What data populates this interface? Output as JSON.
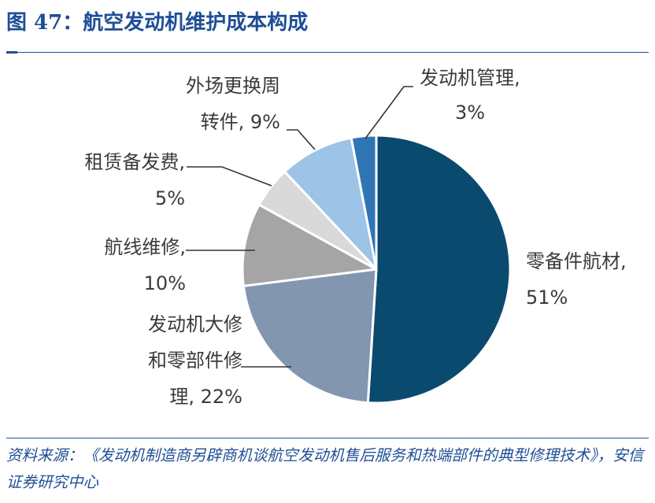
{
  "title": "图 47：航空发动机维护成本构成",
  "source": "资料来源：《发动机制造商另辟商机谈航空发动机售后服务和热端部件的典型修理技术》，安信证券研究中心",
  "chart_data": {
    "type": "pie",
    "title": "",
    "legend": "none",
    "slices": [
      {
        "label": "零备件航材",
        "value": 51,
        "color": "#0b4a6f",
        "label_lines": [
          "零备件航材,",
          "51%"
        ]
      },
      {
        "label": "发动机大修和零部件修理",
        "value": 22,
        "color": "#8396b0",
        "label_lines": [
          "发动机大修",
          "和零部件修",
          "理, 22%"
        ]
      },
      {
        "label": "航线维修",
        "value": 10,
        "color": "#a5a5a5",
        "label_lines": [
          "航线维修,",
          "10%"
        ]
      },
      {
        "label": "租赁备发费",
        "value": 5,
        "color": "#d9d9d9",
        "label_lines": [
          "租赁备发费,",
          "5%"
        ]
      },
      {
        "label": "外场更换周转件",
        "value": 9,
        "color": "#9dc3e6",
        "label_lines": [
          "外场更换周",
          "转件, 9%"
        ]
      },
      {
        "label": "发动机管理",
        "value": 3,
        "color": "#2e75b6",
        "label_lines": [
          "发动机管理,",
          "3%"
        ]
      }
    ]
  }
}
